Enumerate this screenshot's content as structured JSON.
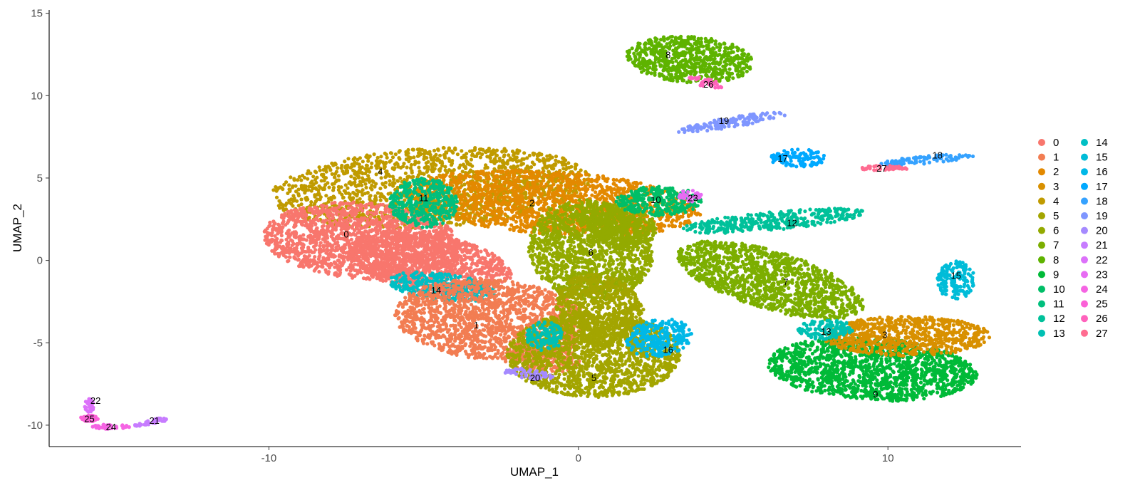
{
  "chart_data": {
    "type": "scatter",
    "title": "",
    "xlabel": "UMAP_1",
    "ylabel": "UMAP_2",
    "xlim": [
      -17.1,
      14.3
    ],
    "ylim": [
      -11.3,
      15.2
    ],
    "x_ticks": [
      -10,
      0,
      10
    ],
    "x_tick_labels": [
      "-10",
      "0",
      "10"
    ],
    "y_ticks": [
      -10,
      -5,
      0,
      5,
      10,
      15
    ],
    "y_tick_labels": [
      "-10",
      "-5",
      "0",
      "5",
      "10",
      "15"
    ],
    "grid": false,
    "legend_position": "right",
    "legend_columns": 2,
    "clusters": [
      {
        "id": "0",
        "color": "#F8766D",
        "label_x": -7.5,
        "label_y": 1.6
      },
      {
        "id": "1",
        "color": "#F27D52",
        "label_x": -3.3,
        "label_y": -3.9
      },
      {
        "id": "2",
        "color": "#E38900",
        "label_x": -1.5,
        "label_y": 3.5
      },
      {
        "id": "3",
        "color": "#D89000",
        "label_x": 9.9,
        "label_y": -4.5
      },
      {
        "id": "4",
        "color": "#C09B00",
        "label_x": -6.4,
        "label_y": 5.4
      },
      {
        "id": "5",
        "color": "#A3A500",
        "label_x": 0.5,
        "label_y": -7.1
      },
      {
        "id": "6",
        "color": "#93AA00",
        "label_x": 0.4,
        "label_y": 0.5
      },
      {
        "id": "7",
        "color": "#7CAE00",
        "label_x": 6.7,
        "label_y": -1.3
      },
      {
        "id": "8",
        "color": "#5EB300",
        "label_x": 2.9,
        "label_y": 12.5
      },
      {
        "id": "9",
        "color": "#00BA38",
        "label_x": 9.6,
        "label_y": -8.1
      },
      {
        "id": "10",
        "color": "#00BE67",
        "label_x": 2.5,
        "label_y": 3.7
      },
      {
        "id": "11",
        "color": "#00BF7D",
        "label_x": -5.0,
        "label_y": 3.8
      },
      {
        "id": "12",
        "color": "#00C19A",
        "label_x": 6.9,
        "label_y": 2.3
      },
      {
        "id": "13",
        "color": "#00C0B3",
        "label_x": 8.0,
        "label_y": -4.3
      },
      {
        "id": "14",
        "color": "#00BFC4",
        "label_x": -4.6,
        "label_y": -1.8
      },
      {
        "id": "15",
        "color": "#00BCD8",
        "label_x": 12.2,
        "label_y": -0.9
      },
      {
        "id": "16",
        "color": "#00B8E7",
        "label_x": 2.9,
        "label_y": -5.4
      },
      {
        "id": "17",
        "color": "#00A9FF",
        "label_x": 6.6,
        "label_y": 6.2
      },
      {
        "id": "18",
        "color": "#35A2FF",
        "label_x": 11.6,
        "label_y": 6.4
      },
      {
        "id": "19",
        "color": "#7F96FF",
        "label_x": 4.7,
        "label_y": 8.5
      },
      {
        "id": "20",
        "color": "#A58AFF",
        "label_x": -1.4,
        "label_y": -7.1
      },
      {
        "id": "21",
        "color": "#C77CFF",
        "label_x": -13.7,
        "label_y": -9.7
      },
      {
        "id": "22",
        "color": "#DC71FA",
        "label_x": -15.6,
        "label_y": -8.5
      },
      {
        "id": "23",
        "color": "#E76BF3",
        "label_x": 3.7,
        "label_y": 3.8
      },
      {
        "id": "24",
        "color": "#F564E3",
        "label_x": -15.1,
        "label_y": -10.1
      },
      {
        "id": "25",
        "color": "#FB61D7",
        "label_x": -15.8,
        "label_y": -9.6
      },
      {
        "id": "26",
        "color": "#FF62BC",
        "label_x": 4.2,
        "label_y": 10.7
      },
      {
        "id": "27",
        "color": "#FF6C91",
        "label_x": 9.8,
        "label_y": 5.6
      }
    ]
  }
}
